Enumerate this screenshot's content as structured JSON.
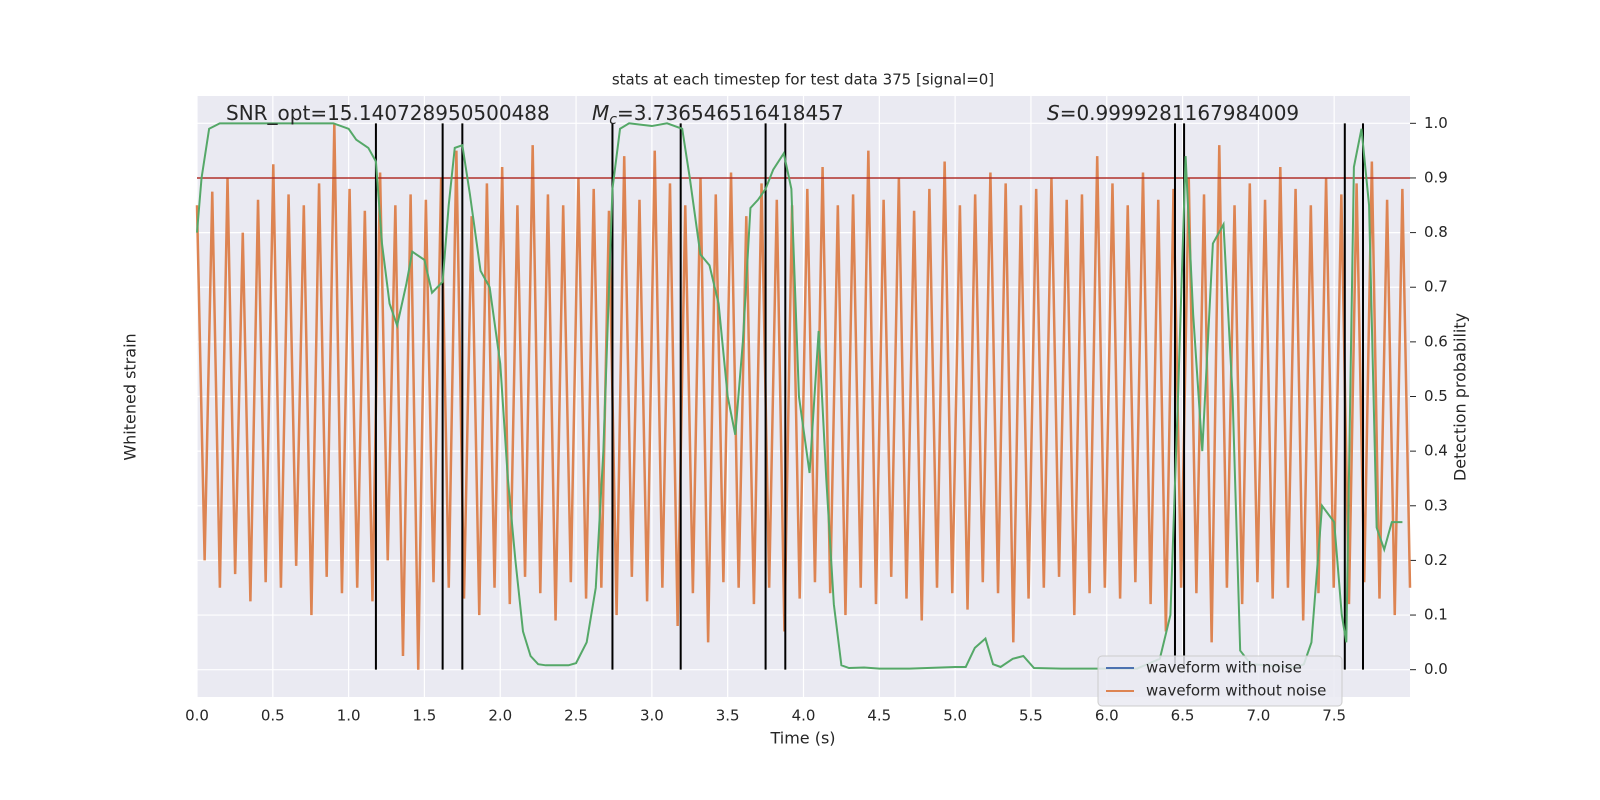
{
  "chart_data": {
    "type": "line",
    "title": "stats at each timestep for test data 375 [signal=0]",
    "xlabel": "Time (s)",
    "ylabel": "Whitened strain",
    "y2label": "Detection probability",
    "xlim": [
      0,
      8.0
    ],
    "xticks": [
      {
        "value": 0,
        "label": "0.0"
      },
      0.5,
      {
        "value": 1,
        "label": "1.0"
      },
      1.5,
      {
        "value": 2,
        "label": "2.0"
      },
      2.5,
      {
        "value": 3,
        "label": "3.0"
      },
      3.5,
      {
        "value": 4,
        "label": "4.0"
      },
      4.5,
      {
        "value": 5,
        "label": "5.0"
      },
      5.5,
      {
        "value": 6,
        "label": "6.0"
      },
      6.5,
      {
        "value": 7,
        "label": "7.0"
      },
      7.5
    ],
    "ylim": [
      -1.1,
      1.1
    ],
    "y2lim": [
      -0.05,
      1.05
    ],
    "y2ticks": [
      {
        "value": 0,
        "label": "0.0"
      },
      0.1,
      0.2,
      0.3,
      0.4,
      {
        "value": 0.5,
        "label": "0.5"
      },
      0.6,
      0.7,
      0.8,
      0.9,
      {
        "value": 1,
        "label": "1.0"
      }
    ],
    "grid": true,
    "legend": "lower right",
    "series": [
      {
        "name": "waveform with noise",
        "color": "#4c72b0"
      },
      {
        "name": "waveform without noise",
        "color": "#dd8452",
        "values": [
          0.7,
          -0.6,
          0.75,
          -0.7,
          0.8,
          -0.65,
          0.6,
          -0.75,
          0.72,
          -0.68,
          0.85,
          -0.7,
          0.74,
          -0.62,
          0.7,
          -0.8,
          0.78,
          -0.66,
          1.0,
          -0.72,
          0.76,
          -0.7,
          0.68,
          -0.75,
          0.82,
          -0.6,
          0.7,
          -0.95,
          0.74,
          -1.0,
          0.72,
          -0.68,
          0.8,
          -0.7,
          0.9,
          -0.74,
          0.66,
          -0.8,
          0.78,
          -0.7,
          0.84,
          -0.76,
          0.7,
          -0.66,
          0.92,
          -0.72,
          0.74,
          -0.82,
          0.7,
          -0.68,
          0.8,
          -0.74,
          0.76,
          -0.7,
          0.68,
          -0.8,
          0.88,
          -0.66,
          0.72,
          -0.75,
          0.9,
          -0.7,
          0.78,
          -0.84,
          0.7,
          -0.72,
          0.8,
          -0.9,
          0.74,
          -0.68,
          0.82,
          -0.7,
          0.66,
          -0.76,
          0.78,
          -0.7,
          0.72,
          -0.86,
          0.7,
          -0.74,
          0.76,
          -0.68,
          0.84,
          -0.72,
          0.7,
          -0.8,
          0.74,
          -0.7,
          0.9,
          -0.76,
          0.72,
          -0.66,
          0.8,
          -0.74,
          0.68,
          -0.82,
          0.76,
          -0.7,
          0.86,
          -0.72,
          0.7,
          -0.78,
          0.74,
          -0.68,
          0.82,
          -0.72,
          0.78,
          -0.9,
          0.7,
          -0.74,
          0.76,
          -0.7,
          0.8,
          -0.66,
          0.72,
          -0.8,
          0.74,
          -0.72,
          0.88,
          -0.7,
          0.78,
          -0.74,
          0.7,
          -0.68,
          0.82,
          -0.76,
          0.72,
          -0.86,
          0.76,
          -0.7,
          0.8,
          -0.72,
          0.74,
          -0.9,
          0.92,
          -0.7,
          0.7,
          -0.76,
          0.78,
          -0.68,
          0.72,
          -0.74,
          0.84,
          -0.7,
          0.76,
          -0.82,
          0.7,
          -0.72,
          0.8,
          -0.7,
          0.74,
          -0.76,
          0.78,
          -0.68,
          0.86,
          -0.74,
          0.72,
          -0.8,
          0.76,
          -0.7
        ]
      }
    ],
    "probability": {
      "color": "#55a868",
      "axis": "y2",
      "x": [
        0.0,
        0.03,
        0.08,
        0.15,
        0.5,
        0.7,
        0.9,
        1.0,
        1.05,
        1.13,
        1.18,
        1.22,
        1.27,
        1.32,
        1.38,
        1.42,
        1.5,
        1.55,
        1.62,
        1.66,
        1.7,
        1.75,
        1.8,
        1.87,
        1.93,
        2.0,
        2.05,
        2.1,
        2.15,
        2.2,
        2.25,
        2.3,
        2.35,
        2.45,
        2.5,
        2.57,
        2.63,
        2.68,
        2.74,
        2.79,
        2.85,
        3.0,
        3.1,
        3.2,
        3.25,
        3.32,
        3.38,
        3.44,
        3.5,
        3.55,
        3.6,
        3.65,
        3.7,
        3.75,
        3.8,
        3.87,
        3.92,
        3.97,
        4.04,
        4.1,
        4.15,
        4.2,
        4.25,
        4.3,
        4.4,
        4.5,
        4.7,
        5.0,
        5.07,
        5.13,
        5.2,
        5.25,
        5.3,
        5.38,
        5.45,
        5.52,
        5.7,
        6.2,
        6.35,
        6.42,
        6.47,
        6.52,
        6.57,
        6.63,
        6.7,
        6.77,
        6.83,
        6.88,
        6.95,
        7.25,
        7.3,
        7.35,
        7.42,
        7.5,
        7.55,
        7.58,
        7.63,
        7.68,
        7.73,
        7.78,
        7.83,
        7.88,
        7.95
      ],
      "values": [
        0.8,
        0.9,
        0.99,
        1.0,
        1.0,
        1.0,
        1.0,
        0.99,
        0.97,
        0.955,
        0.93,
        0.78,
        0.67,
        0.63,
        0.705,
        0.765,
        0.75,
        0.69,
        0.71,
        0.85,
        0.955,
        0.96,
        0.87,
        0.73,
        0.7,
        0.56,
        0.35,
        0.2,
        0.07,
        0.025,
        0.01,
        0.008,
        0.008,
        0.008,
        0.012,
        0.05,
        0.15,
        0.4,
        0.88,
        0.99,
        1.0,
        0.995,
        1.0,
        0.99,
        0.9,
        0.76,
        0.74,
        0.67,
        0.5,
        0.43,
        0.6,
        0.845,
        0.86,
        0.88,
        0.915,
        0.945,
        0.88,
        0.5,
        0.36,
        0.62,
        0.35,
        0.12,
        0.008,
        0.003,
        0.004,
        0.002,
        0.002,
        0.005,
        0.005,
        0.04,
        0.057,
        0.01,
        0.005,
        0.02,
        0.025,
        0.003,
        0.002,
        0.002,
        0.02,
        0.1,
        0.5,
        0.94,
        0.65,
        0.4,
        0.78,
        0.815,
        0.5,
        0.035,
        0.01,
        0.004,
        0.01,
        0.05,
        0.3,
        0.27,
        0.1,
        0.05,
        0.92,
        0.99,
        0.85,
        0.26,
        0.22,
        0.27,
        0.27
      ]
    },
    "threshold": {
      "value": 0.9,
      "color": "#b0302a"
    },
    "vlines": {
      "x": [
        1.18,
        1.62,
        1.75,
        2.74,
        3.19,
        3.75,
        3.88,
        6.45,
        6.51,
        7.57,
        7.69
      ],
      "color": "#000000"
    },
    "annotations": [
      {
        "text": "SNR_opt=15.140728950500488"
      },
      {
        "symbol": "M",
        "subscript": "c",
        "text": "=3.736546516418457"
      },
      {
        "symbol": "S",
        "text": "=0.9999281167984009"
      }
    ]
  }
}
